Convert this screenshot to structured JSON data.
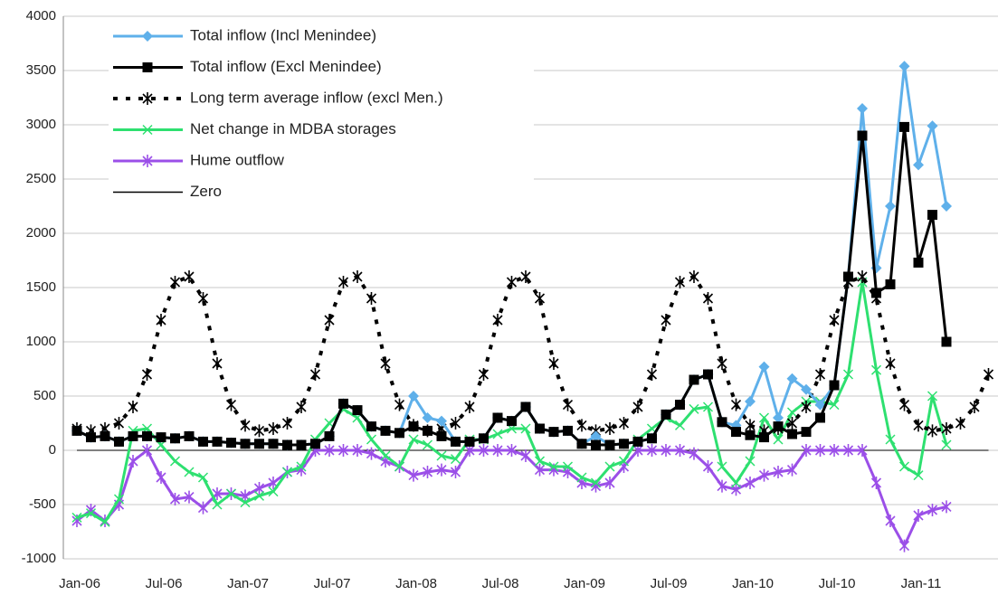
{
  "chart_data": {
    "type": "line",
    "categories": [
      "Jan-06",
      null,
      null,
      null,
      null,
      null,
      "Jul-06",
      null,
      null,
      null,
      null,
      null,
      "Jan-07",
      null,
      null,
      null,
      null,
      null,
      "Jul-07",
      null,
      null,
      null,
      null,
      null,
      "Jan-08",
      null,
      null,
      null,
      null,
      null,
      "Jul-08",
      null,
      null,
      null,
      null,
      null,
      "Jan-09",
      null,
      null,
      null,
      null,
      null,
      "Jul-09",
      null,
      null,
      null,
      null,
      null,
      "Jan-10",
      null,
      null,
      null,
      null,
      null,
      "Jul-10",
      null,
      null,
      null,
      null,
      null,
      "Jan-11",
      null,
      null,
      null,
      null,
      null
    ],
    "ylim": [
      -1000,
      4000
    ],
    "yticks": [
      -1000,
      -500,
      0,
      500,
      1000,
      1500,
      2000,
      2500,
      3000,
      3500,
      4000
    ],
    "grid": true,
    "legend": "upper-left",
    "series": [
      {
        "name": "Total inflow (Incl Menindee)",
        "color": "#5fb0ea",
        "marker": "diamond",
        "dash": false,
        "values": [
          180,
          120,
          130,
          80,
          130,
          130,
          120,
          110,
          130,
          80,
          80,
          70,
          60,
          60,
          60,
          50,
          50,
          60,
          130,
          430,
          370,
          220,
          180,
          160,
          500,
          300,
          270,
          80,
          80,
          110,
          300,
          270,
          400,
          200,
          170,
          180,
          60,
          130,
          50,
          60,
          80,
          110,
          330,
          420,
          650,
          700,
          260,
          230,
          450,
          770,
          300,
          660,
          560,
          420,
          600,
          1600,
          3150,
          1680,
          2250,
          3540,
          2630,
          2990,
          2250,
          null,
          null,
          null
        ]
      },
      {
        "name": "Total inflow (Excl Menindee)",
        "color": "#000000",
        "marker": "square",
        "dash": false,
        "values": [
          180,
          120,
          130,
          80,
          130,
          130,
          120,
          110,
          130,
          80,
          80,
          70,
          60,
          60,
          60,
          50,
          50,
          60,
          130,
          430,
          370,
          220,
          180,
          160,
          220,
          180,
          130,
          80,
          80,
          110,
          300,
          270,
          400,
          200,
          170,
          180,
          60,
          50,
          50,
          60,
          80,
          110,
          330,
          420,
          650,
          700,
          260,
          170,
          140,
          120,
          220,
          150,
          170,
          300,
          600,
          1600,
          2900,
          1450,
          1530,
          2980,
          1730,
          2170,
          1000,
          null,
          null,
          null
        ]
      },
      {
        "name": "Long term average inflow (excl Men.)",
        "color": "#000000",
        "marker": "asterisk",
        "dash": true,
        "values": [
          200,
          180,
          200,
          250,
          400,
          700,
          1200,
          1550,
          1600,
          1400,
          800,
          420,
          230,
          180,
          200,
          250,
          400,
          700,
          1200,
          1550,
          1600,
          1400,
          800,
          420,
          230,
          180,
          200,
          250,
          400,
          700,
          1200,
          1550,
          1600,
          1400,
          800,
          420,
          230,
          180,
          200,
          250,
          400,
          700,
          1200,
          1550,
          1600,
          1400,
          800,
          420,
          230,
          180,
          200,
          250,
          400,
          700,
          1200,
          1550,
          1600,
          1400,
          800,
          420,
          230,
          180,
          200,
          250,
          400,
          700
        ]
      },
      {
        "name": "Net change in MDBA storages",
        "color": "#2ee070",
        "marker": "x",
        "dash": false,
        "values": [
          -620,
          -580,
          -660,
          -450,
          180,
          200,
          50,
          -100,
          -200,
          -250,
          -500,
          -400,
          -480,
          -420,
          -380,
          -200,
          -150,
          100,
          250,
          380,
          300,
          100,
          -50,
          -150,
          100,
          50,
          -50,
          -80,
          100,
          100,
          150,
          200,
          200,
          -100,
          -150,
          -150,
          -250,
          -300,
          -150,
          -100,
          100,
          200,
          300,
          230,
          380,
          400,
          -150,
          -300,
          -100,
          300,
          100,
          350,
          450,
          450,
          420,
          700,
          1550,
          740,
          100,
          -150,
          -230,
          500,
          50,
          null,
          null,
          null
        ]
      },
      {
        "name": "Hume outflow",
        "color": "#9b4fe8",
        "marker": "asterisk",
        "dash": false,
        "values": [
          -650,
          -550,
          -650,
          -500,
          -100,
          0,
          -250,
          -450,
          -430,
          -530,
          -400,
          -400,
          -420,
          -350,
          -300,
          -200,
          -180,
          0,
          0,
          0,
          0,
          -30,
          -100,
          -150,
          -230,
          -200,
          -180,
          -200,
          0,
          0,
          0,
          0,
          -50,
          -180,
          -180,
          -200,
          -300,
          -330,
          -300,
          -150,
          0,
          0,
          0,
          0,
          -30,
          -150,
          -330,
          -360,
          -300,
          -230,
          -200,
          -180,
          0,
          0,
          0,
          0,
          0,
          -300,
          -650,
          -880,
          -600,
          -550,
          -520,
          null,
          null,
          null
        ]
      },
      {
        "name": "Zero",
        "color": "#000000",
        "marker": "none",
        "dash": false,
        "values": [
          0,
          0,
          0,
          0,
          0,
          0,
          0,
          0,
          0,
          0,
          0,
          0,
          0,
          0,
          0,
          0,
          0,
          0,
          0,
          0,
          0,
          0,
          0,
          0,
          0,
          0,
          0,
          0,
          0,
          0,
          0,
          0,
          0,
          0,
          0,
          0,
          0,
          0,
          0,
          0,
          0,
          0,
          0,
          0,
          0,
          0,
          0,
          0,
          0,
          0,
          0,
          0,
          0,
          0,
          0,
          0,
          0,
          0,
          0,
          0,
          0,
          0,
          0,
          0,
          0,
          0
        ]
      }
    ]
  }
}
